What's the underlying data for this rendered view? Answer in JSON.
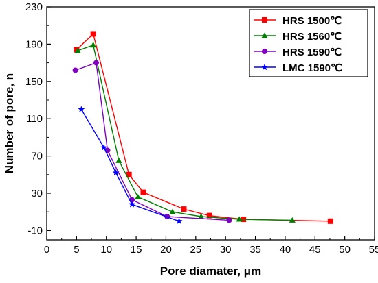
{
  "chart_data": {
    "type": "line",
    "xlabel": "Pore diamater, μm",
    "ylabel": "Number of pore, n",
    "xlim": [
      0,
      55
    ],
    "ylim": [
      -20,
      230
    ],
    "xticks": [
      0,
      5,
      10,
      15,
      20,
      25,
      30,
      35,
      40,
      45,
      50,
      55
    ],
    "yticks": [
      -10,
      30,
      70,
      110,
      150,
      190,
      230
    ],
    "grid": false,
    "legend_position": "top-right",
    "series": [
      {
        "name": "HRS  1500℃",
        "color": "#ff0000",
        "marker": "square",
        "points": [
          [
            5,
            184
          ],
          [
            7.8,
            201
          ],
          [
            13.8,
            50
          ],
          [
            16.2,
            31
          ],
          [
            23,
            13
          ],
          [
            27.3,
            6
          ],
          [
            33,
            2
          ],
          [
            47.6,
            0
          ]
        ]
      },
      {
        "name": "HRS  1560℃",
        "color": "#008000",
        "marker": "triangle",
        "points": [
          [
            5.2,
            183
          ],
          [
            7.8,
            189
          ],
          [
            12.1,
            65
          ],
          [
            15.3,
            26
          ],
          [
            21.1,
            10
          ],
          [
            25.9,
            5
          ],
          [
            32.3,
            2
          ],
          [
            41.2,
            1
          ]
        ]
      },
      {
        "name": "HRS  1590℃",
        "color": "#8000c0",
        "marker": "circle",
        "points": [
          [
            4.8,
            162
          ],
          [
            8.3,
            170
          ],
          [
            10.2,
            76
          ],
          [
            14.3,
            23
          ],
          [
            20.2,
            5
          ],
          [
            30.6,
            1
          ]
        ]
      },
      {
        "name": "LMC  1590℃",
        "color": "#0000ff",
        "marker": "star",
        "points": [
          [
            5.8,
            120
          ],
          [
            9.6,
            79
          ],
          [
            11.6,
            52
          ],
          [
            14.3,
            18
          ],
          [
            22.2,
            0
          ]
        ]
      }
    ]
  }
}
